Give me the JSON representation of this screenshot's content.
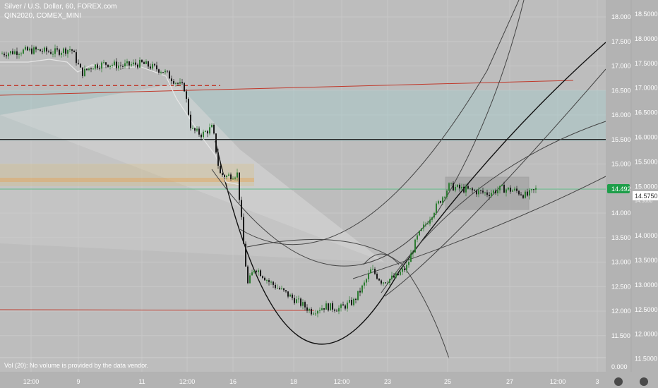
{
  "header": {
    "symbol_line": "Silver / U.S. Dollar, 60, FOREX.com",
    "compare_line": "QIN2020, COMEX_MINI"
  },
  "volume_note": "Vol (20): No volume is provided by the data vendor.",
  "right_axis_a": {
    "ticks": [
      "18.000",
      "17.500",
      "17.000",
      "16.500",
      "16.000",
      "15.500",
      "15.000",
      "14.500",
      "14.000",
      "13.500",
      "13.000",
      "12.500",
      "12.000",
      "11.500",
      "0.000"
    ],
    "badge": "14.492"
  },
  "right_axis_b": {
    "ticks": [
      "18.5000",
      "18.0000",
      "17.5000",
      "17.0000",
      "16.5000",
      "16.0000",
      "15.5000",
      "15.0000",
      "14.0000",
      "13.5000",
      "13.0000",
      "12.5000",
      "12.0000",
      "11.5000"
    ],
    "badge": "14.5750",
    "badge_top": "14.5000"
  },
  "x_axis": {
    "labels": [
      "12:00",
      "9",
      "11",
      "12:00",
      "16",
      "18",
      "12:00",
      "23",
      "25",
      "27",
      "12:00",
      "3"
    ]
  },
  "colors": {
    "background": "#b9b9b9",
    "up_candle": "#2e7d32",
    "down_candle": "#1a1a1a",
    "badge_green": "#1e9e4a",
    "resistance_red": "#c0392b",
    "box_fill": "#9c9c9c"
  },
  "chart_data": {
    "type": "candlestick",
    "series": [
      {
        "name": "Silver / U.S. Dollar, 60, FOREX.com"
      },
      {
        "name": "QIN2020, COMEX_MINI"
      }
    ],
    "last_price": 14.492,
    "compare_last_price": 14.575,
    "ylim": [
      11.2,
      18.1
    ],
    "horizontal_levels": [
      {
        "value": 15.5,
        "style": "solid-black"
      },
      {
        "value": 16.6,
        "style": "dashed-red"
      }
    ],
    "path": [
      [
        0,
        17.25
      ],
      [
        25,
        17.3
      ],
      [
        50,
        17.32
      ],
      [
        75,
        17.28
      ],
      [
        100,
        17.35
      ],
      [
        115,
        16.85
      ],
      [
        130,
        17.0
      ],
      [
        150,
        17.05
      ],
      [
        170,
        17.0
      ],
      [
        200,
        17.05
      ],
      [
        230,
        16.9
      ],
      [
        250,
        16.65
      ],
      [
        260,
        16.55
      ],
      [
        270,
        15.7
      ],
      [
        285,
        15.6
      ],
      [
        300,
        15.75
      ],
      [
        310,
        14.8
      ],
      [
        320,
        14.75
      ],
      [
        335,
        14.8
      ],
      [
        345,
        13.2
      ],
      [
        350,
        12.55
      ],
      [
        360,
        12.9
      ],
      [
        380,
        12.6
      ],
      [
        400,
        12.4
      ],
      [
        420,
        12.2
      ],
      [
        440,
        12.0
      ],
      [
        460,
        12.1
      ],
      [
        480,
        12.05
      ],
      [
        500,
        12.2
      ],
      [
        515,
        12.55
      ],
      [
        525,
        12.85
      ],
      [
        540,
        12.6
      ],
      [
        560,
        12.7
      ],
      [
        575,
        12.9
      ],
      [
        590,
        13.5
      ],
      [
        605,
        13.85
      ],
      [
        620,
        14.2
      ],
      [
        635,
        14.55
      ],
      [
        650,
        14.5
      ],
      [
        670,
        14.45
      ],
      [
        690,
        14.4
      ],
      [
        710,
        14.5
      ],
      [
        730,
        14.45
      ],
      [
        745,
        14.35
      ],
      [
        760,
        14.5
      ]
    ]
  }
}
